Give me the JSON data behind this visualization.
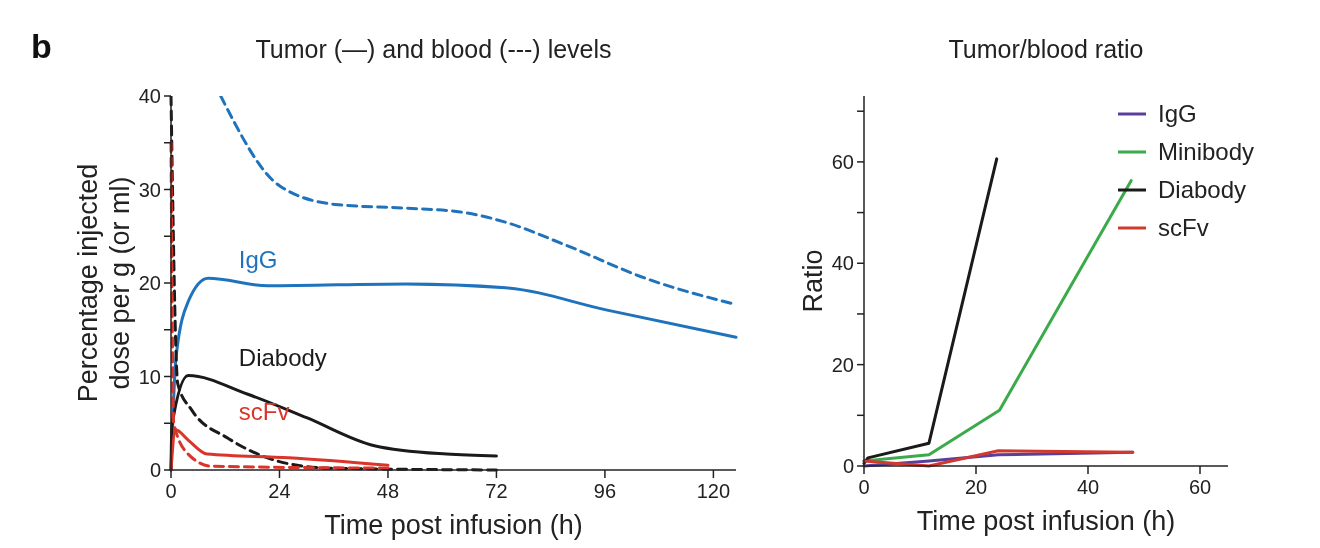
{
  "chart_data": [
    {
      "type": "line",
      "title": "Tumor (—) and blood (---) levels",
      "xlabel": "Time post infusion (h)",
      "ylabel": "Percentage injected dose per g (or ml)",
      "annotations": [
        "b"
      ],
      "xlim": [
        0,
        125
      ],
      "ylim": [
        0,
        40
      ],
      "xticks": [
        0,
        24,
        48,
        72,
        96,
        120
      ],
      "yticks": [
        0,
        {
          "value": 5,
          "label": null
        },
        10,
        {
          "value": 15,
          "label": null
        },
        20,
        {
          "value": 25,
          "label": null
        },
        30,
        {
          "value": 35,
          "label": null
        },
        40
      ],
      "legend": false,
      "series": [
        {
          "name": "IgG",
          "color": "#1f73bd",
          "line_style": "solid",
          "x": [
            0,
            1.1,
            3.8,
            8.2,
            21.4,
            52,
            74,
            96.5,
            125
          ],
          "values": [
            0,
            12,
            18,
            20.5,
            19.7,
            19.9,
            19.5,
            17.1,
            14.2
          ]
        },
        {
          "color": "#1f73bd",
          "line_style": "dashed",
          "x": [
            11,
            24,
            36.4,
            52,
            64,
            74,
            87.6,
            105,
            125
          ],
          "values": [
            40,
            30.4,
            28.4,
            28,
            27.6,
            26.5,
            24,
            20.5,
            17.7
          ]
        },
        {
          "name": "Diabody",
          "color": "#1a1a1a",
          "line_style": "solid",
          "x": [
            0,
            0.2,
            3.8,
            17,
            30,
            45,
            61,
            72
          ],
          "values": [
            0,
            4.7,
            10.1,
            8.1,
            5.6,
            2.6,
            1.7,
            1.5
          ]
        },
        {
          "color": "#1a1a1a",
          "line_style": "dashed",
          "x": [
            0,
            1.5,
            4.6,
            12.6,
            24,
            35,
            72
          ],
          "values": [
            40,
            9.2,
            6.4,
            3.4,
            0.9,
            0.2,
            0
          ]
        },
        {
          "name": "scFv",
          "color": "#d9352a",
          "line_style": "solid",
          "x": [
            0,
            1,
            3.8,
            8,
            26,
            48
          ],
          "values": [
            0,
            4.3,
            3.2,
            1.7,
            1.3,
            0.5
          ]
        },
        {
          "color": "#d9352a",
          "line_style": "dashed",
          "x": [
            0,
            0.6,
            3.8,
            9,
            48
          ],
          "values": [
            35,
            5,
            1.7,
            0.4,
            0.2
          ]
        }
      ]
    },
    {
      "type": "line",
      "title": "Tumor/blood ratio",
      "xlabel": "Time post infusion (h)",
      "ylabel": "Ratio",
      "xlim": [
        0,
        65
      ],
      "ylim": [
        0,
        73
      ],
      "xticks": [
        0,
        20,
        40,
        60
      ],
      "yticks": [
        0,
        {
          "value": 10,
          "label": null
        },
        20,
        {
          "value": 30,
          "label": null
        },
        40,
        {
          "value": 50,
          "label": null
        },
        60,
        {
          "value": 70,
          "label": null
        }
      ],
      "legend": "top right",
      "series": [
        {
          "name": "IgG",
          "color": "#5a3e9c",
          "x": [
            0,
            11.6,
            24,
            48
          ],
          "values": [
            0,
            1,
            2.2,
            2.7
          ]
        },
        {
          "name": "Minibody",
          "color": "#3aaa4a",
          "x": [
            0,
            11.6,
            24.2,
            47.7
          ],
          "values": [
            1,
            2.2,
            11,
            56.3
          ]
        },
        {
          "name": "Diabody",
          "color": "#1a1a1a",
          "x": [
            0,
            0.7,
            11.6,
            23.7
          ],
          "values": [
            0.5,
            1.6,
            4.5,
            60.6
          ]
        },
        {
          "name": "scFv",
          "color": "#d03a2e",
          "x": [
            0,
            11.6,
            24,
            48
          ],
          "values": [
            1,
            0,
            3,
            2.7
          ]
        }
      ]
    }
  ]
}
